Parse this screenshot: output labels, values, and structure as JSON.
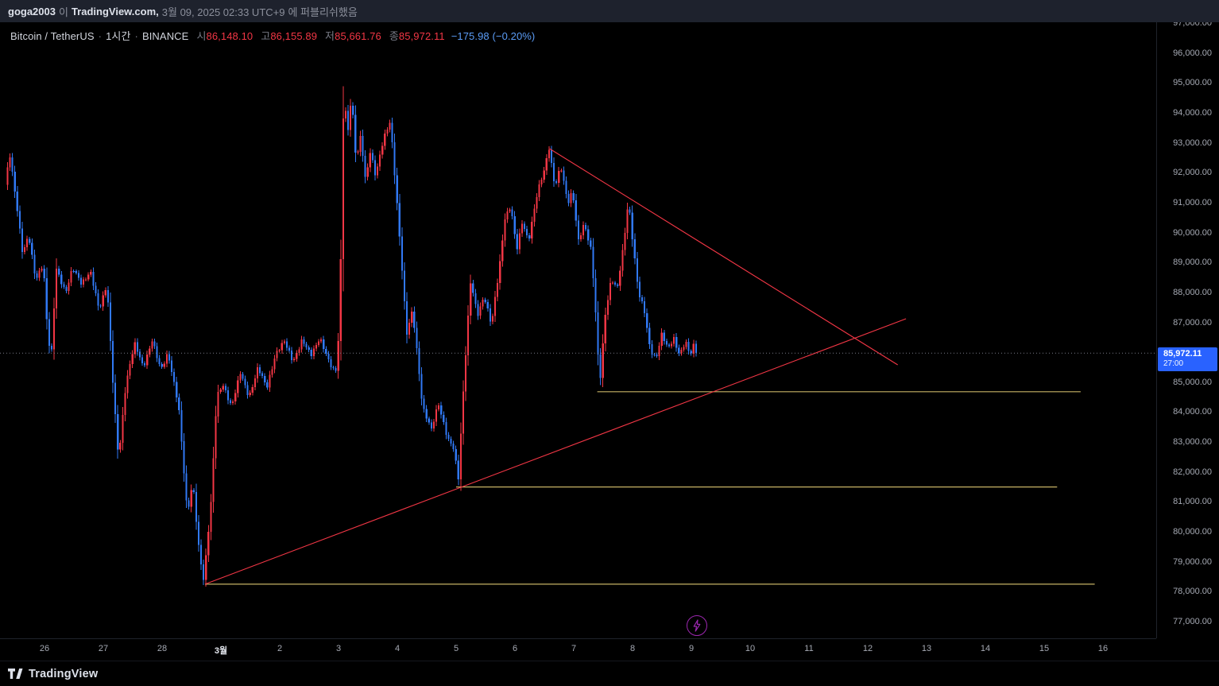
{
  "publish_bar": {
    "user": "goga2003",
    "particle": "이",
    "site": "TradingView.com,",
    "date": "3월 09, 2025 02:33 UTC+9",
    "suffix": "에 퍼블리쉬했음"
  },
  "legend": {
    "symbol": "Bitcoin / TetherUS",
    "sep": "·",
    "interval": "1시간",
    "exchange": "BINANCE",
    "ohlc": [
      {
        "label": "시",
        "value": "86,148.10"
      },
      {
        "label": "고",
        "value": "86,155.89"
      },
      {
        "label": "저",
        "value": "85,661.76"
      },
      {
        "label": "종",
        "value": "85,972.11"
      }
    ],
    "change": "−175.98 (−0.20%)"
  },
  "price_label": {
    "price": "85,972.11",
    "countdown": "27:00",
    "value": 85972.11
  },
  "footer": {
    "logo_text": "TradingView"
  },
  "colors": {
    "up": "#f23645",
    "down": "#3179f5",
    "badge": "#2962ff",
    "ray": "#c5b264",
    "trendline": "#f23645",
    "last_price_line": "#787b86",
    "axis_text": "#a5a9b3",
    "flash": "#9c27b0"
  },
  "chart_data": {
    "type": "candlestick",
    "instrument": "Bitcoin / TetherUS",
    "exchange": "BINANCE",
    "interval": "1시간",
    "current_price": 85972.11,
    "ohlc_last": {
      "open": 86148.1,
      "high": 86155.89,
      "low": 85661.76,
      "close": 85972.11,
      "change": -175.98,
      "change_pct": -0.2
    },
    "y_axis": {
      "min": 77000,
      "max": 97000,
      "tick_step": 1000
    },
    "y_tick_labels": [
      "97,000.00",
      "96,000.00",
      "95,000.00",
      "94,000.00",
      "93,000.00",
      "92,000.00",
      "91,000.00",
      "90,000.00",
      "89,000.00",
      "88,000.00",
      "87,000.00",
      "86,000.00",
      "85,000.00",
      "84,000.00",
      "83,000.00",
      "82,000.00",
      "81,000.00",
      "80,000.00",
      "79,000.00",
      "78,000.00",
      "77,000.00"
    ],
    "x_tick_labels": [
      {
        "text": "26",
        "day": 0
      },
      {
        "text": "27",
        "day": 1
      },
      {
        "text": "28",
        "day": 2
      },
      {
        "text": "3월",
        "day": 3,
        "em": true
      },
      {
        "text": "2",
        "day": 4
      },
      {
        "text": "3",
        "day": 5
      },
      {
        "text": "4",
        "day": 6
      },
      {
        "text": "5",
        "day": 7
      },
      {
        "text": "6",
        "day": 8
      },
      {
        "text": "7",
        "day": 9
      },
      {
        "text": "8",
        "day": 10
      },
      {
        "text": "9",
        "day": 11
      },
      {
        "text": "10",
        "day": 12
      },
      {
        "text": "11",
        "day": 13
      },
      {
        "text": "12",
        "day": 14
      },
      {
        "text": "13",
        "day": 15
      },
      {
        "text": "14",
        "day": 16
      },
      {
        "text": "15",
        "day": 17
      },
      {
        "text": "16",
        "day": 18
      }
    ],
    "horizontal_rays": [
      {
        "price": 84680,
        "from_day": 9.4,
        "to_day": 17.62
      },
      {
        "price": 81500,
        "from_day": 7.0,
        "to_day": 17.22
      },
      {
        "price": 78250,
        "from_day": 2.73,
        "to_day": 17.86
      }
    ],
    "trendlines": [
      {
        "from_day": 8.59,
        "from_price": 92800,
        "to_day": 14.51,
        "to_price": 85580
      },
      {
        "from_day": 2.73,
        "from_price": 78250,
        "to_day": 14.65,
        "to_price": 87120
      }
    ],
    "waypoints": [
      [
        -0.65,
        91600
      ],
      [
        -0.57,
        92600
      ],
      [
        -0.45,
        90900
      ],
      [
        -0.35,
        89300
      ],
      [
        -0.25,
        89900
      ],
      [
        -0.13,
        88400
      ],
      [
        0.0,
        89000
      ],
      [
        0.08,
        86400
      ],
      [
        0.14,
        85950
      ],
      [
        0.22,
        88800
      ],
      [
        0.38,
        88000
      ],
      [
        0.5,
        88800
      ],
      [
        0.65,
        88300
      ],
      [
        0.8,
        88700
      ],
      [
        0.95,
        87400
      ],
      [
        1.08,
        88300
      ],
      [
        1.2,
        84500
      ],
      [
        1.28,
        82400
      ],
      [
        1.4,
        84900
      ],
      [
        1.55,
        86300
      ],
      [
        1.7,
        85500
      ],
      [
        1.85,
        86400
      ],
      [
        2.0,
        85400
      ],
      [
        2.12,
        86000
      ],
      [
        2.3,
        84200
      ],
      [
        2.45,
        80600
      ],
      [
        2.54,
        81700
      ],
      [
        2.65,
        79300
      ],
      [
        2.73,
        78350
      ],
      [
        2.85,
        81000
      ],
      [
        2.95,
        84500
      ],
      [
        3.05,
        84900
      ],
      [
        3.2,
        84200
      ],
      [
        3.35,
        85300
      ],
      [
        3.5,
        84500
      ],
      [
        3.65,
        85500
      ],
      [
        3.8,
        84800
      ],
      [
        3.95,
        85950
      ],
      [
        4.1,
        86350
      ],
      [
        4.25,
        85700
      ],
      [
        4.4,
        86400
      ],
      [
        4.55,
        85900
      ],
      [
        4.7,
        86500
      ],
      [
        4.85,
        85700
      ],
      [
        4.97,
        85300
      ],
      [
        5.04,
        87000
      ],
      [
        5.08,
        91500
      ],
      [
        5.11,
        95050
      ],
      [
        5.17,
        93100
      ],
      [
        5.24,
        94600
      ],
      [
        5.32,
        92400
      ],
      [
        5.4,
        93300
      ],
      [
        5.48,
        91700
      ],
      [
        5.56,
        92700
      ],
      [
        5.65,
        91900
      ],
      [
        5.78,
        93100
      ],
      [
        5.9,
        93700
      ],
      [
        6.0,
        91400
      ],
      [
        6.1,
        88800
      ],
      [
        6.18,
        86600
      ],
      [
        6.28,
        87400
      ],
      [
        6.45,
        84200
      ],
      [
        6.6,
        83400
      ],
      [
        6.72,
        84300
      ],
      [
        6.88,
        83100
      ],
      [
        7.0,
        82700
      ],
      [
        7.05,
        81500
      ],
      [
        7.12,
        84000
      ],
      [
        7.2,
        86500
      ],
      [
        7.27,
        88400
      ],
      [
        7.38,
        87200
      ],
      [
        7.5,
        87900
      ],
      [
        7.62,
        86900
      ],
      [
        7.75,
        88700
      ],
      [
        7.85,
        90500
      ],
      [
        7.95,
        90900
      ],
      [
        8.05,
        89400
      ],
      [
        8.15,
        90400
      ],
      [
        8.25,
        89700
      ],
      [
        8.4,
        91300
      ],
      [
        8.52,
        92100
      ],
      [
        8.6,
        92850
      ],
      [
        8.7,
        91500
      ],
      [
        8.8,
        92200
      ],
      [
        8.92,
        91000
      ],
      [
        9.0,
        91400
      ],
      [
        9.1,
        89700
      ],
      [
        9.2,
        90300
      ],
      [
        9.32,
        89400
      ],
      [
        9.41,
        86800
      ],
      [
        9.46,
        84800
      ],
      [
        9.56,
        87300
      ],
      [
        9.66,
        88500
      ],
      [
        9.76,
        88100
      ],
      [
        9.87,
        89600
      ],
      [
        9.95,
        91100
      ],
      [
        10.02,
        89800
      ],
      [
        10.12,
        88000
      ],
      [
        10.22,
        87400
      ],
      [
        10.32,
        86100
      ],
      [
        10.42,
        85800
      ],
      [
        10.52,
        86600
      ],
      [
        10.62,
        86100
      ],
      [
        10.72,
        86500
      ],
      [
        10.82,
        85900
      ],
      [
        10.92,
        86350
      ],
      [
        11.0,
        85900
      ],
      [
        11.06,
        86250
      ],
      [
        11.12,
        85972
      ]
    ]
  }
}
